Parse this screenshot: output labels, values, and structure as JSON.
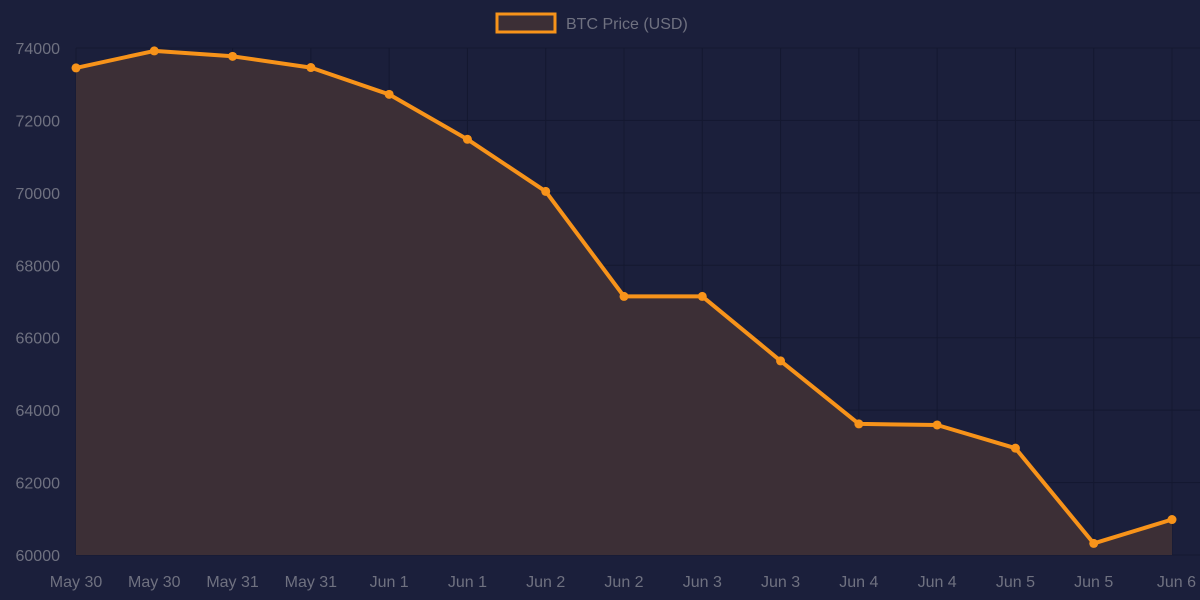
{
  "chart_data": {
    "type": "area",
    "title": "",
    "xlabel": "",
    "ylabel": "",
    "categories": [
      "May 30",
      "May 30",
      "May 31",
      "May 31",
      "Jun 1",
      "Jun 1",
      "Jun 2",
      "Jun 2",
      "Jun 3",
      "Jun 3",
      "Jun 4",
      "Jun 4",
      "Jun 5",
      "Jun 5",
      "Jun 6"
    ],
    "series": [
      {
        "name": "BTC Price (USD)",
        "values": [
          73450,
          73920,
          73770,
          73460,
          72720,
          71480,
          70040,
          67140,
          67140,
          65360,
          63620,
          63590,
          62950,
          60320,
          60980
        ]
      }
    ],
    "ylim": [
      60000,
      74000
    ],
    "yticks": [
      60000,
      62000,
      64000,
      66000,
      68000,
      70000,
      72000,
      74000
    ],
    "grid": true,
    "legend_position": "top-center",
    "colors": {
      "background": "#1b1f3b",
      "line": "#f7931a",
      "fill": "#3c2f36",
      "grid": "#141830",
      "text": "#6f7180"
    }
  }
}
